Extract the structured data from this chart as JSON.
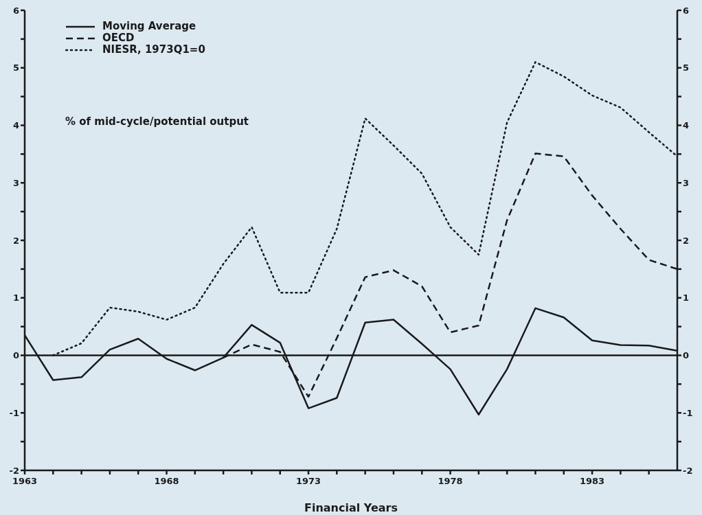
{
  "chart_data": {
    "type": "line",
    "xlabel": "Financial Years",
    "ylabel": "% of mid-cycle/potential output",
    "legend": "top left",
    "grid": false,
    "x": [
      1963,
      1964,
      1965,
      1966,
      1967,
      1968,
      1969,
      1970,
      1971,
      1972,
      1973,
      1974,
      1975,
      1976,
      1977,
      1978,
      1979,
      1980,
      1981,
      1982,
      1983,
      1984,
      1985,
      1986
    ],
    "series": [
      {
        "name": "Moving Average",
        "color": "#1a1a1a",
        "line_style": "solid",
        "values": [
          0.35,
          -0.43,
          -0.38,
          0.1,
          0.29,
          -0.06,
          -0.26,
          -0.04,
          0.53,
          0.22,
          -0.92,
          -0.74,
          0.57,
          0.62,
          0.2,
          -0.24,
          -1.03,
          -0.24,
          0.82,
          0.66,
          0.26,
          0.18,
          0.17,
          0.08
        ]
      },
      {
        "name": "OECD",
        "color": "#1a1a1a",
        "line_style": "dashed",
        "values": [
          null,
          null,
          null,
          null,
          null,
          null,
          null,
          -0.04,
          0.19,
          0.06,
          -0.72,
          0.3,
          1.36,
          1.48,
          1.2,
          0.4,
          0.52,
          2.35,
          3.51,
          3.46,
          2.78,
          2.2,
          1.66,
          1.5
        ]
      },
      {
        "name": "NIESR, 1973Q1=0",
        "color": "#1a1a1a",
        "line_style": "dotted",
        "values": [
          null,
          0,
          0.21,
          0.83,
          0.76,
          0.62,
          0.83,
          1.59,
          2.23,
          1.09,
          1.09,
          2.2,
          4.12,
          3.65,
          3.16,
          2.23,
          1.75,
          4.05,
          5.1,
          4.85,
          4.52,
          4.31,
          3.88,
          3.46
        ]
      }
    ],
    "xlim": [
      1963,
      1986
    ],
    "xticks": [
      1963,
      {
        "value": 1964,
        "label": null
      },
      {
        "value": 1965,
        "label": null
      },
      {
        "value": 1966,
        "label": null
      },
      {
        "value": 1967,
        "label": null
      },
      1968,
      {
        "value": 1969,
        "label": null
      },
      {
        "value": 1970,
        "label": null
      },
      {
        "value": 1971,
        "label": null
      },
      {
        "value": 1972,
        "label": null
      },
      1973,
      {
        "value": 1974,
        "label": null
      },
      {
        "value": 1975,
        "label": null
      },
      {
        "value": 1976,
        "label": null
      },
      {
        "value": 1977,
        "label": null
      },
      1978,
      {
        "value": 1979,
        "label": null
      },
      {
        "value": 1980,
        "label": null
      },
      {
        "value": 1981,
        "label": null
      },
      {
        "value": 1982,
        "label": null
      },
      1983,
      {
        "value": 1984,
        "label": null
      },
      {
        "value": 1985,
        "label": null
      }
    ],
    "ylim": [
      -2,
      6
    ],
    "yticks": [
      -2,
      {
        "value": -1.5,
        "label": null
      },
      -1,
      {
        "value": -0.5,
        "label": null
      },
      0,
      {
        "value": 0.5,
        "label": null
      },
      1,
      {
        "value": 1.5,
        "label": null
      },
      2,
      {
        "value": 2.5,
        "label": null
      },
      3,
      {
        "value": 3.5,
        "label": null
      },
      4,
      {
        "value": 4.5,
        "label": null
      },
      5,
      {
        "value": 5.5,
        "label": null
      },
      6
    ],
    "y2lim": [
      -2,
      6
    ],
    "y2ticks": [
      -2,
      {
        "value": -1.5,
        "label": null
      },
      -1,
      {
        "value": -0.5,
        "label": null
      },
      0,
      {
        "value": 0.5,
        "label": null
      },
      1,
      {
        "value": 1.5,
        "label": null
      },
      2,
      {
        "value": 2.5,
        "label": null
      },
      3,
      {
        "value": 3.5,
        "label": null
      },
      4,
      {
        "value": 4.5,
        "label": null
      },
      5,
      {
        "value": 5.5,
        "label": null
      },
      6
    ],
    "ref_lines": [
      {
        "axis": "y",
        "value": 0,
        "color": "#1a1a1a"
      }
    ]
  }
}
